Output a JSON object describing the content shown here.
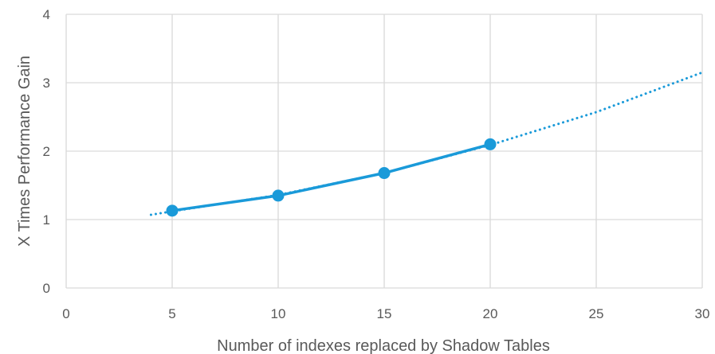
{
  "chart_data": {
    "type": "line",
    "title": "",
    "xlabel": "Number of indexes replaced by Shadow Tables",
    "ylabel": "X Times Performance Gain",
    "xlim": [
      0,
      30
    ],
    "ylim": [
      0,
      4
    ],
    "xticks": [
      0,
      5,
      10,
      15,
      20,
      25,
      30
    ],
    "yticks": [
      0,
      1,
      2,
      3,
      4
    ],
    "grid": true,
    "legend": "none",
    "series": [
      {
        "style": "solid-with-markers",
        "color": "#1A9AD9",
        "x": [
          5,
          10,
          15,
          20
        ],
        "y": [
          1.13,
          1.35,
          1.68,
          2.1
        ]
      }
    ],
    "trendline": {
      "style": "dotted",
      "color": "#1A9AD9",
      "x_range": [
        4,
        30
      ],
      "points": [
        [
          4,
          1.07
        ],
        [
          5,
          1.12
        ],
        [
          10,
          1.36
        ],
        [
          15,
          1.68
        ],
        [
          20,
          2.09
        ],
        [
          25,
          2.57
        ],
        [
          30,
          3.15
        ]
      ]
    },
    "colors": {
      "gridline": "#D9D9D9",
      "text": "#595959"
    }
  }
}
